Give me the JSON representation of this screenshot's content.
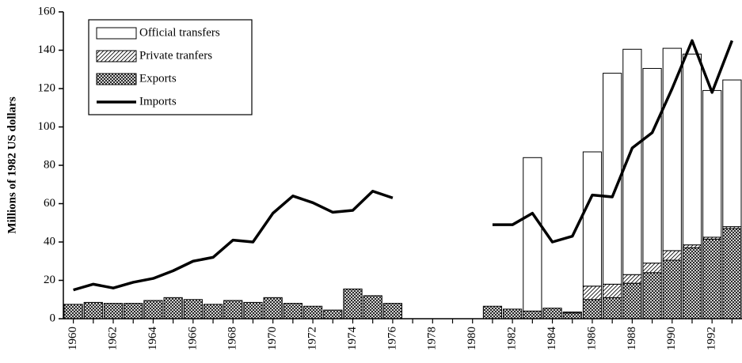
{
  "chart_data": {
    "type": "bar",
    "y_label": "Millions of 1982 US dollars",
    "categories": [
      "1960",
      null,
      "1962",
      null,
      "1964",
      null,
      "1966",
      null,
      "1968",
      null,
      "1970",
      null,
      "1972",
      null,
      "1974",
      null,
      "1976",
      null,
      "1978",
      null,
      "1980",
      null,
      "1982",
      null,
      "1984",
      null,
      "1986",
      null,
      "1988",
      null,
      "1990",
      null,
      "1992",
      null
    ],
    "series": [
      {
        "name": "Official transfers",
        "type": "bar",
        "pattern": "none",
        "color": "#ffffff",
        "values": [
          null,
          null,
          null,
          null,
          null,
          null,
          null,
          null,
          null,
          null,
          null,
          null,
          null,
          null,
          null,
          null,
          null,
          null,
          null,
          null,
          null,
          null,
          null,
          80,
          null,
          null,
          70,
          110,
          117.5,
          101.5,
          105.5,
          99.5,
          76.5,
          76.5
        ]
      },
      {
        "name": "Private tranfers",
        "type": "bar",
        "pattern": "diagonal",
        "color": "#ffffff",
        "values": [
          null,
          null,
          null,
          null,
          null,
          null,
          null,
          null,
          null,
          null,
          null,
          null,
          null,
          null,
          null,
          null,
          null,
          null,
          null,
          null,
          null,
          null,
          null,
          null,
          null,
          0.5,
          7,
          7,
          4.5,
          5,
          5,
          1.5,
          1,
          1
        ]
      },
      {
        "name": "Exports",
        "type": "bar",
        "pattern": "crosshatch",
        "color": "#ffffff",
        "values": [
          7.5,
          8.5,
          8,
          8,
          9.5,
          11,
          10,
          7.5,
          9.5,
          8.5,
          11,
          8,
          6.5,
          4.5,
          15.5,
          12,
          8,
          null,
          null,
          null,
          null,
          6.5,
          5,
          4,
          5.5,
          3,
          10,
          11,
          18.5,
          24,
          30.5,
          37,
          41.5,
          47
        ]
      },
      {
        "name": "Imports",
        "type": "line",
        "color": "#000000",
        "values": [
          15,
          18,
          16,
          19,
          21,
          25,
          30,
          32,
          41,
          40,
          55,
          64,
          60.5,
          55.5,
          56.5,
          66.5,
          63,
          null,
          null,
          null,
          null,
          49,
          49,
          55,
          40,
          43,
          64.5,
          63.5,
          89,
          97,
          120,
          145,
          118,
          145
        ]
      }
    ],
    "ylim": [
      0,
      160
    ],
    "yticks": [
      0,
      20,
      40,
      60,
      80,
      100,
      120,
      140,
      160
    ],
    "grid": false
  }
}
